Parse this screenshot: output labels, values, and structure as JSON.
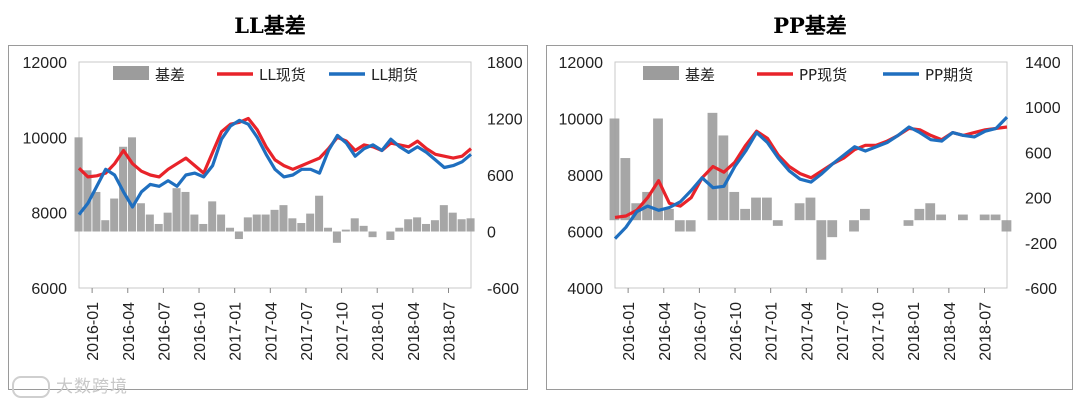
{
  "charts": [
    {
      "id": "ll",
      "chart_data": {
        "type": "line",
        "title": "LL基差",
        "legend": [
          "基差",
          "LL现货",
          "LL期货"
        ],
        "legend_placement": "top",
        "left_axis": {
          "min": 6000,
          "max": 12000,
          "ticks": [
            "12000",
            "10000",
            "8000",
            "6000"
          ]
        },
        "right_axis": {
          "min": -600,
          "max": 1800,
          "ticks": [
            "1800",
            "1200",
            "600",
            "0",
            "-600"
          ]
        },
        "x_ticks": [
          "2016-01",
          "2016-04",
          "2016-07",
          "2016-10",
          "2017-01",
          "2017-04",
          "2017-07",
          "2017-10",
          "2018-01",
          "2018-04",
          "2018-07"
        ],
        "series": [
          {
            "name": "LL现货",
            "color": "#e8232a",
            "axis": "left",
            "values": [
              9180,
              8950,
              8980,
              9050,
              9300,
              9650,
              9300,
              9100,
              9000,
              8950,
              9150,
              9300,
              9450,
              9250,
              9050,
              9600,
              10150,
              10350,
              10400,
              10500,
              10200,
              9750,
              9400,
              9250,
              9150,
              9250,
              9350,
              9450,
              9700,
              10000,
              9900,
              9650,
              9800,
              9750,
              9650,
              9850,
              9800,
              9750,
              9900,
              9700,
              9550,
              9500,
              9450,
              9500,
              9700
            ]
          },
          {
            "name": "LL期货",
            "color": "#1f6fbf",
            "axis": "left",
            "values": [
              7950,
              8250,
              8700,
              9150,
              9000,
              8550,
              8150,
              8550,
              8750,
              8700,
              8850,
              8700,
              9000,
              9050,
              8950,
              9250,
              9950,
              10300,
              10450,
              10350,
              10000,
              9550,
              9150,
              8950,
              9000,
              9150,
              9150,
              9050,
              9650,
              10050,
              9850,
              9500,
              9700,
              9800,
              9650,
              9950,
              9750,
              9600,
              9750,
              9600,
              9400,
              9200,
              9250,
              9350,
              9550
            ]
          },
          {
            "name": "基差",
            "color": "#9c9c9c",
            "axis": "right",
            "values": [
              1000,
              650,
              420,
              120,
              350,
              900,
              1000,
              300,
              180,
              80,
              200,
              460,
              420,
              180,
              80,
              320,
              180,
              40,
              -80,
              150,
              180,
              180,
              230,
              280,
              140,
              90,
              190,
              380,
              40,
              -120,
              20,
              140,
              60,
              -60,
              0,
              -90,
              40,
              130,
              150,
              80,
              120,
              280,
              200,
              130,
              140
            ]
          }
        ]
      }
    },
    {
      "id": "pp",
      "chart_data": {
        "type": "line",
        "title": "PP基差",
        "legend": [
          "基差",
          "PP现货",
          "PP期货"
        ],
        "legend_placement": "top",
        "left_axis": {
          "min": 4000,
          "max": 12000,
          "ticks": [
            "12000",
            "10000",
            "8000",
            "6000",
            "4000"
          ]
        },
        "right_axis": {
          "min": -600,
          "max": 1400,
          "ticks": [
            "1400",
            "1000",
            "600",
            "200",
            "-200",
            "-600"
          ]
        },
        "x_ticks": [
          "2016-01",
          "2016-04",
          "2016-07",
          "2016-10",
          "2017-01",
          "2017-04",
          "2017-07",
          "2017-10",
          "2018-01",
          "2018-04",
          "2018-07"
        ],
        "series": [
          {
            "name": "PP现货",
            "color": "#e8232a",
            "axis": "left",
            "values": [
              6500,
              6550,
              6750,
              7200,
              7800,
              7000,
              6900,
              7200,
              7900,
              8300,
              8100,
              8450,
              9050,
              9550,
              9300,
              8700,
              8300,
              8050,
              7900,
              8150,
              8400,
              8600,
              8900,
              9050,
              9050,
              9200,
              9400,
              9650,
              9600,
              9400,
              9250,
              9500,
              9400,
              9500,
              9600,
              9650,
              9700
            ]
          },
          {
            "name": "PP期货",
            "color": "#1f6fbf",
            "axis": "left",
            "values": [
              5750,
              6150,
              6700,
              6900,
              6750,
              6850,
              7050,
              7450,
              7900,
              7550,
              7600,
              8300,
              8850,
              9500,
              9150,
              8600,
              8150,
              7850,
              7750,
              8050,
              8400,
              8700,
              9000,
              8850,
              9000,
              9150,
              9400,
              9700,
              9500,
              9250,
              9200,
              9500,
              9400,
              9350,
              9550,
              9650,
              10050
            ]
          },
          {
            "name": "基差",
            "color": "#9c9c9c",
            "axis": "right",
            "values": [
              900,
              550,
              150,
              250,
              900,
              100,
              -100,
              -100,
              0,
              950,
              750,
              250,
              100,
              200,
              200,
              -50,
              0,
              150,
              200,
              -350,
              -150,
              0,
              -100,
              100,
              0,
              0,
              0,
              -50,
              100,
              150,
              50,
              0,
              50,
              0,
              50,
              50,
              -100
            ]
          }
        ]
      }
    }
  ],
  "watermark": "大数跨境"
}
